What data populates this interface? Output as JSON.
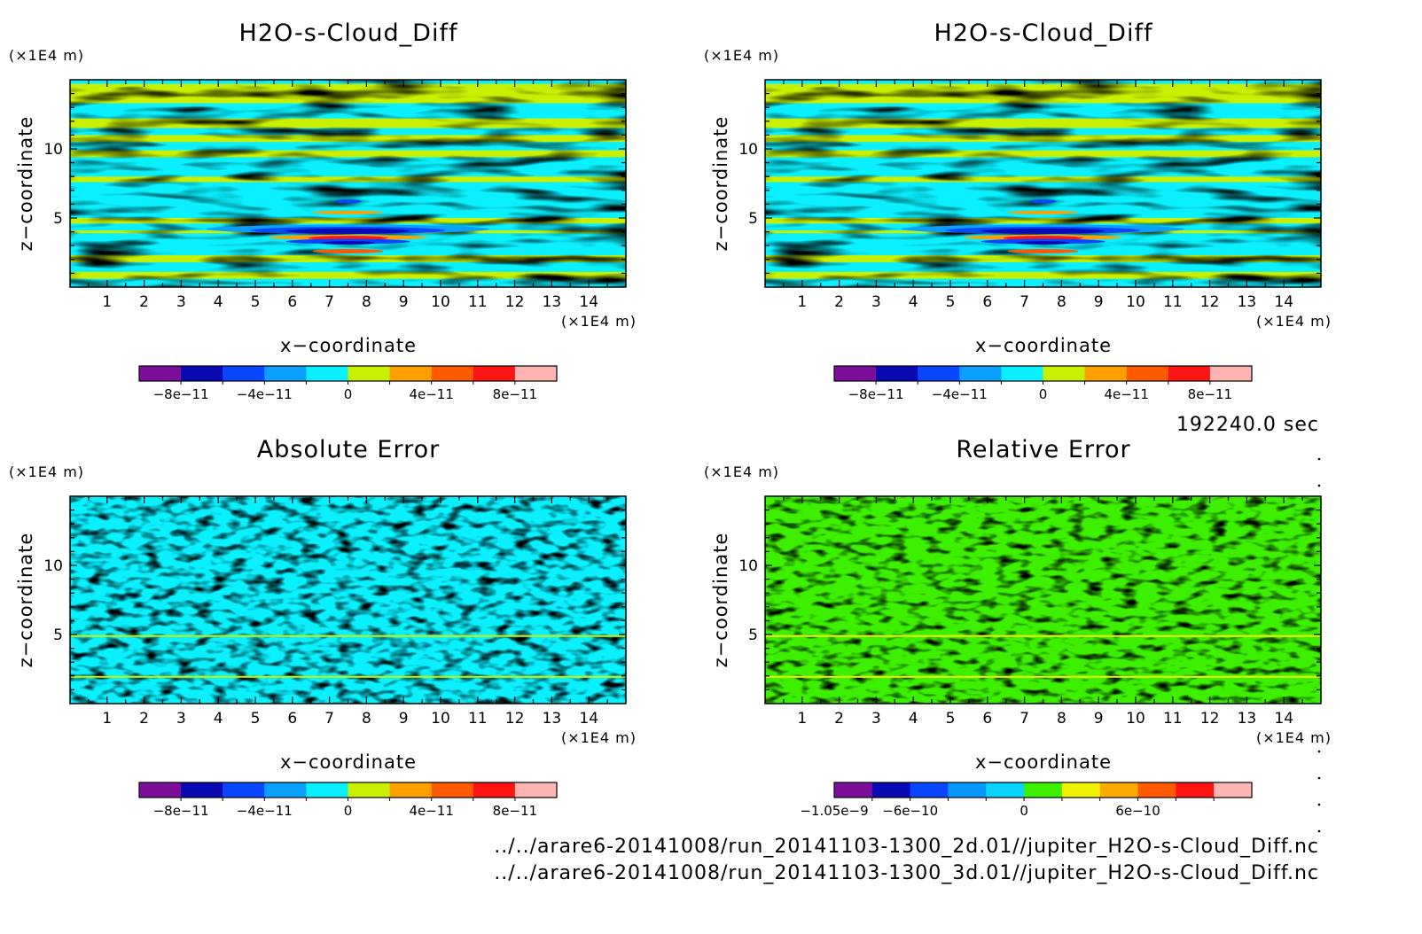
{
  "panels": [
    {
      "title": "H2O-s-Cloud_Diff",
      "x_unit": "(×1E4 m)",
      "y_unit": "(×1E4 m)",
      "xlabel": "x−coordinate",
      "ylabel": "z−coordinate",
      "x_ticks": [
        "1",
        "2",
        "3",
        "4",
        "5",
        "6",
        "7",
        "8",
        "9",
        "10",
        "11",
        "12",
        "13",
        "14"
      ],
      "y_ticks": [
        "5",
        "10"
      ],
      "colorbar": {
        "colors": [
          "#7b0f9c",
          "#0a0ab4",
          "#0a46ff",
          "#0aa0ff",
          "#0af0ff",
          "#c8f000",
          "#ffa000",
          "#ff5a00",
          "#ff1414",
          "#ffb4b4"
        ],
        "labels": [
          "−8e−11",
          "−4e−11",
          "0",
          "4e−11",
          "8e−11"
        ]
      }
    },
    {
      "title": "H2O-s-Cloud_Diff",
      "x_unit": "(×1E4 m)",
      "y_unit": "(×1E4 m)",
      "xlabel": "x−coordinate",
      "ylabel": "z−coordinate",
      "x_ticks": [
        "1",
        "2",
        "3",
        "4",
        "5",
        "6",
        "7",
        "8",
        "9",
        "10",
        "11",
        "12",
        "13",
        "14"
      ],
      "y_ticks": [
        "5",
        "10"
      ],
      "colorbar": {
        "colors": [
          "#7b0f9c",
          "#0a0ab4",
          "#0a46ff",
          "#0aa0ff",
          "#0af0ff",
          "#c8f000",
          "#ffa000",
          "#ff5a00",
          "#ff1414",
          "#ffb4b4"
        ],
        "labels": [
          "−8e−11",
          "−4e−11",
          "0",
          "4e−11",
          "8e−11"
        ]
      }
    },
    {
      "title": "Absolute Error",
      "x_unit": "(×1E4 m)",
      "y_unit": "(×1E4 m)",
      "xlabel": "x−coordinate",
      "ylabel": "z−coordinate",
      "x_ticks": [
        "1",
        "2",
        "3",
        "4",
        "5",
        "6",
        "7",
        "8",
        "9",
        "10",
        "11",
        "12",
        "13",
        "14"
      ],
      "y_ticks": [
        "5",
        "10"
      ],
      "colorbar": {
        "colors": [
          "#7b0f9c",
          "#0a0ab4",
          "#0a46ff",
          "#0aa0ff",
          "#0af0ff",
          "#c8f000",
          "#ffa000",
          "#ff5a00",
          "#ff1414",
          "#ffb4b4"
        ],
        "labels": [
          "−8e−11",
          "−4e−11",
          "0",
          "4e−11",
          "8e−11"
        ]
      }
    },
    {
      "title": "Relative Error",
      "x_unit": "(×1E4 m)",
      "y_unit": "(×1E4 m)",
      "xlabel": "x−coordinate",
      "ylabel": "z−coordinate",
      "x_ticks": [
        "1",
        "2",
        "3",
        "4",
        "5",
        "6",
        "7",
        "8",
        "9",
        "10",
        "11",
        "12",
        "13",
        "14"
      ],
      "y_ticks": [
        "5",
        "10"
      ],
      "colorbar": {
        "colors": [
          "#7b0f9c",
          "#0a0ab4",
          "#0a46ff",
          "#0a96ff",
          "#0ad2ff",
          "#3cf000",
          "#f0f000",
          "#ffaa00",
          "#ff5a00",
          "#ff1414",
          "#ffb4b4"
        ],
        "labels": [
          "−1.05e−9",
          "−6e−10",
          "0",
          "6e−10"
        ]
      }
    }
  ],
  "time_label": "192240.0 sec",
  "files": [
    "../../arare6-20141008/run_20141103-1300_2d.01//jupiter_H2O-s-Cloud_Diff.nc",
    "../../arare6-20141008/run_20141103-1300_3d.01//jupiter_H2O-s-Cloud_Diff.nc"
  ],
  "chart_data": [
    {
      "type": "heatmap",
      "title": "H2O-s-Cloud_Diff",
      "xlabel": "x−coordinate",
      "ylabel": "z−coordinate",
      "x_unit": "×1E4 m",
      "y_unit": "×1E4 m",
      "xlim": [
        0,
        15
      ],
      "ylim": [
        0,
        15
      ],
      "color_range": [
        -1e-10,
        1e-10
      ],
      "color_levels": [
        -1e-10,
        -8e-11,
        -6e-11,
        -4e-11,
        -2e-11,
        0,
        2e-11,
        4e-11,
        6e-11,
        8e-11,
        1e-10
      ],
      "pattern": "horizontal bands of values near 0 (cyan / yellow-green); strong negative/positive anomaly near z≈3–4 centred at x≈7.5"
    },
    {
      "type": "heatmap",
      "title": "H2O-s-Cloud_Diff",
      "xlabel": "x−coordinate",
      "ylabel": "z−coordinate",
      "x_unit": "×1E4 m",
      "y_unit": "×1E4 m",
      "xlim": [
        0,
        15
      ],
      "ylim": [
        0,
        15
      ],
      "color_range": [
        -1e-10,
        1e-10
      ],
      "color_levels": [
        -1e-10,
        -8e-11,
        -6e-11,
        -4e-11,
        -2e-11,
        0,
        2e-11,
        4e-11,
        6e-11,
        8e-11,
        1e-10
      ],
      "pattern": "identical to first panel"
    },
    {
      "type": "heatmap",
      "title": "Absolute Error",
      "xlabel": "x−coordinate",
      "ylabel": "z−coordinate",
      "x_unit": "×1E4 m",
      "y_unit": "×1E4 m",
      "xlim": [
        0,
        15
      ],
      "ylim": [
        0,
        15
      ],
      "color_range": [
        -1e-10,
        1e-10
      ],
      "pattern": "noisy field of small values (cyan / yellow-green)"
    },
    {
      "type": "heatmap",
      "title": "Relative Error",
      "xlabel": "x−coordinate",
      "ylabel": "z−coordinate",
      "x_unit": "×1E4 m",
      "y_unit": "×1E4 m",
      "xlim": [
        0,
        15
      ],
      "ylim": [
        0,
        15
      ],
      "color_range": [
        -1.05e-09,
        1.05e-09
      ],
      "pattern": "noisy field near 0 (green / yellow)"
    }
  ]
}
